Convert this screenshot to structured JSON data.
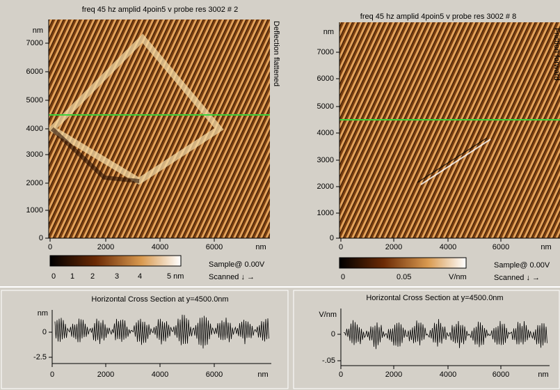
{
  "panels": [
    {
      "title": "freq 45 hz amplid 4poin5 v probe res 3002 # 2",
      "side_label": "Deflection flattened",
      "y_unit": "nm",
      "yticks": [
        "7000",
        "6000",
        "5000",
        "4000",
        "3000",
        "2000",
        "1000",
        "0"
      ],
      "xticks": [
        "0",
        "2000",
        "4000",
        "6000"
      ],
      "x_unit": "nm",
      "colorbar_labels": [
        "0",
        "1",
        "2",
        "3",
        "4",
        "5 nm"
      ],
      "sample": "Sample@ 0.00V",
      "scanned": "Scanned ↓ →",
      "cross_title": "Horizontal Cross Section at y=4500.0nm",
      "cross_y_unit": "nm",
      "cross_yticks": [
        "0",
        "-2.5"
      ],
      "cross_xticks": [
        "0",
        "2000",
        "4000",
        "6000"
      ],
      "cross_x_unit": "nm"
    },
    {
      "title": "freq 45 hz amplid 4poin5 v probe res 3002 # 8",
      "side_label": "Friction forward",
      "y_unit": "nm",
      "yticks": [
        "7000",
        "6000",
        "5000",
        "4000",
        "3000",
        "2000",
        "1000",
        "0"
      ],
      "xticks": [
        "0",
        "2000",
        "4000",
        "6000"
      ],
      "x_unit": "nm",
      "colorbar_labels": [
        "0",
        "0.05",
        "V/nm"
      ],
      "sample": "Sample@ 0.00V",
      "scanned": "Scanned ↓ →",
      "cross_title": "Horizontal Cross Section at y=4500.0nm",
      "cross_y_unit": "V/nm",
      "cross_yticks": [
        "0",
        "-.05"
      ],
      "cross_xticks": [
        "0",
        "2000",
        "4000",
        "6000"
      ],
      "cross_x_unit": "nm"
    }
  ]
}
